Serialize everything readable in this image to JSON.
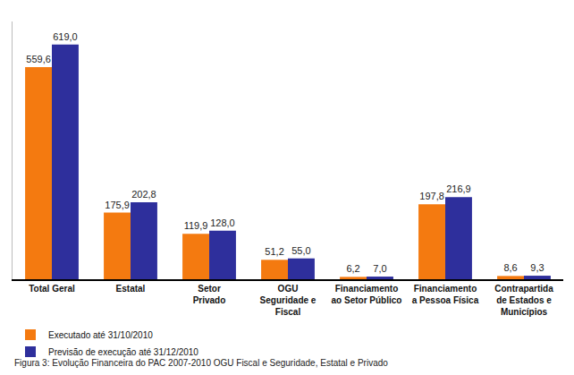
{
  "chart_data": {
    "type": "bar",
    "categories": [
      "Total Geral",
      "Estatal",
      "Setor\nPrivado",
      "OGU\nSeguridade e\nFiscal",
      "Financiamento\nao Setor Público",
      "Financiamento\na Pessoa Física",
      "Contrapartida\nde Estados e\nMunicípios"
    ],
    "series": [
      {
        "name": "Executado até 31/10/2010",
        "color": "#f47a10",
        "values": [
          559.6,
          175.9,
          119.9,
          51.2,
          6.2,
          197.8,
          8.6
        ],
        "value_labels": [
          "559,6",
          "175,9",
          "119,9",
          "51,2",
          "6,2",
          "197,8",
          "8,6"
        ]
      },
      {
        "name": "Previsão de execução até 31/12/2010",
        "color": "#2e2f9c",
        "values": [
          619.0,
          202.8,
          128.0,
          55.0,
          7.0,
          216.9,
          9.3
        ],
        "value_labels": [
          "619,0",
          "202,8",
          "128,0",
          "55,0",
          "7,0",
          "216,9",
          "9,3"
        ]
      }
    ],
    "ylim": [
      0,
      680
    ],
    "yticks": [],
    "grid": false,
    "legend": "bottom left",
    "data_labels": true,
    "tick_labels": "x",
    "annotations": [
      "Figura 3: Evolução Financeira do PAC 2007-2010 OGU Fiscal e Seguridade, Estatal e Privado"
    ]
  }
}
